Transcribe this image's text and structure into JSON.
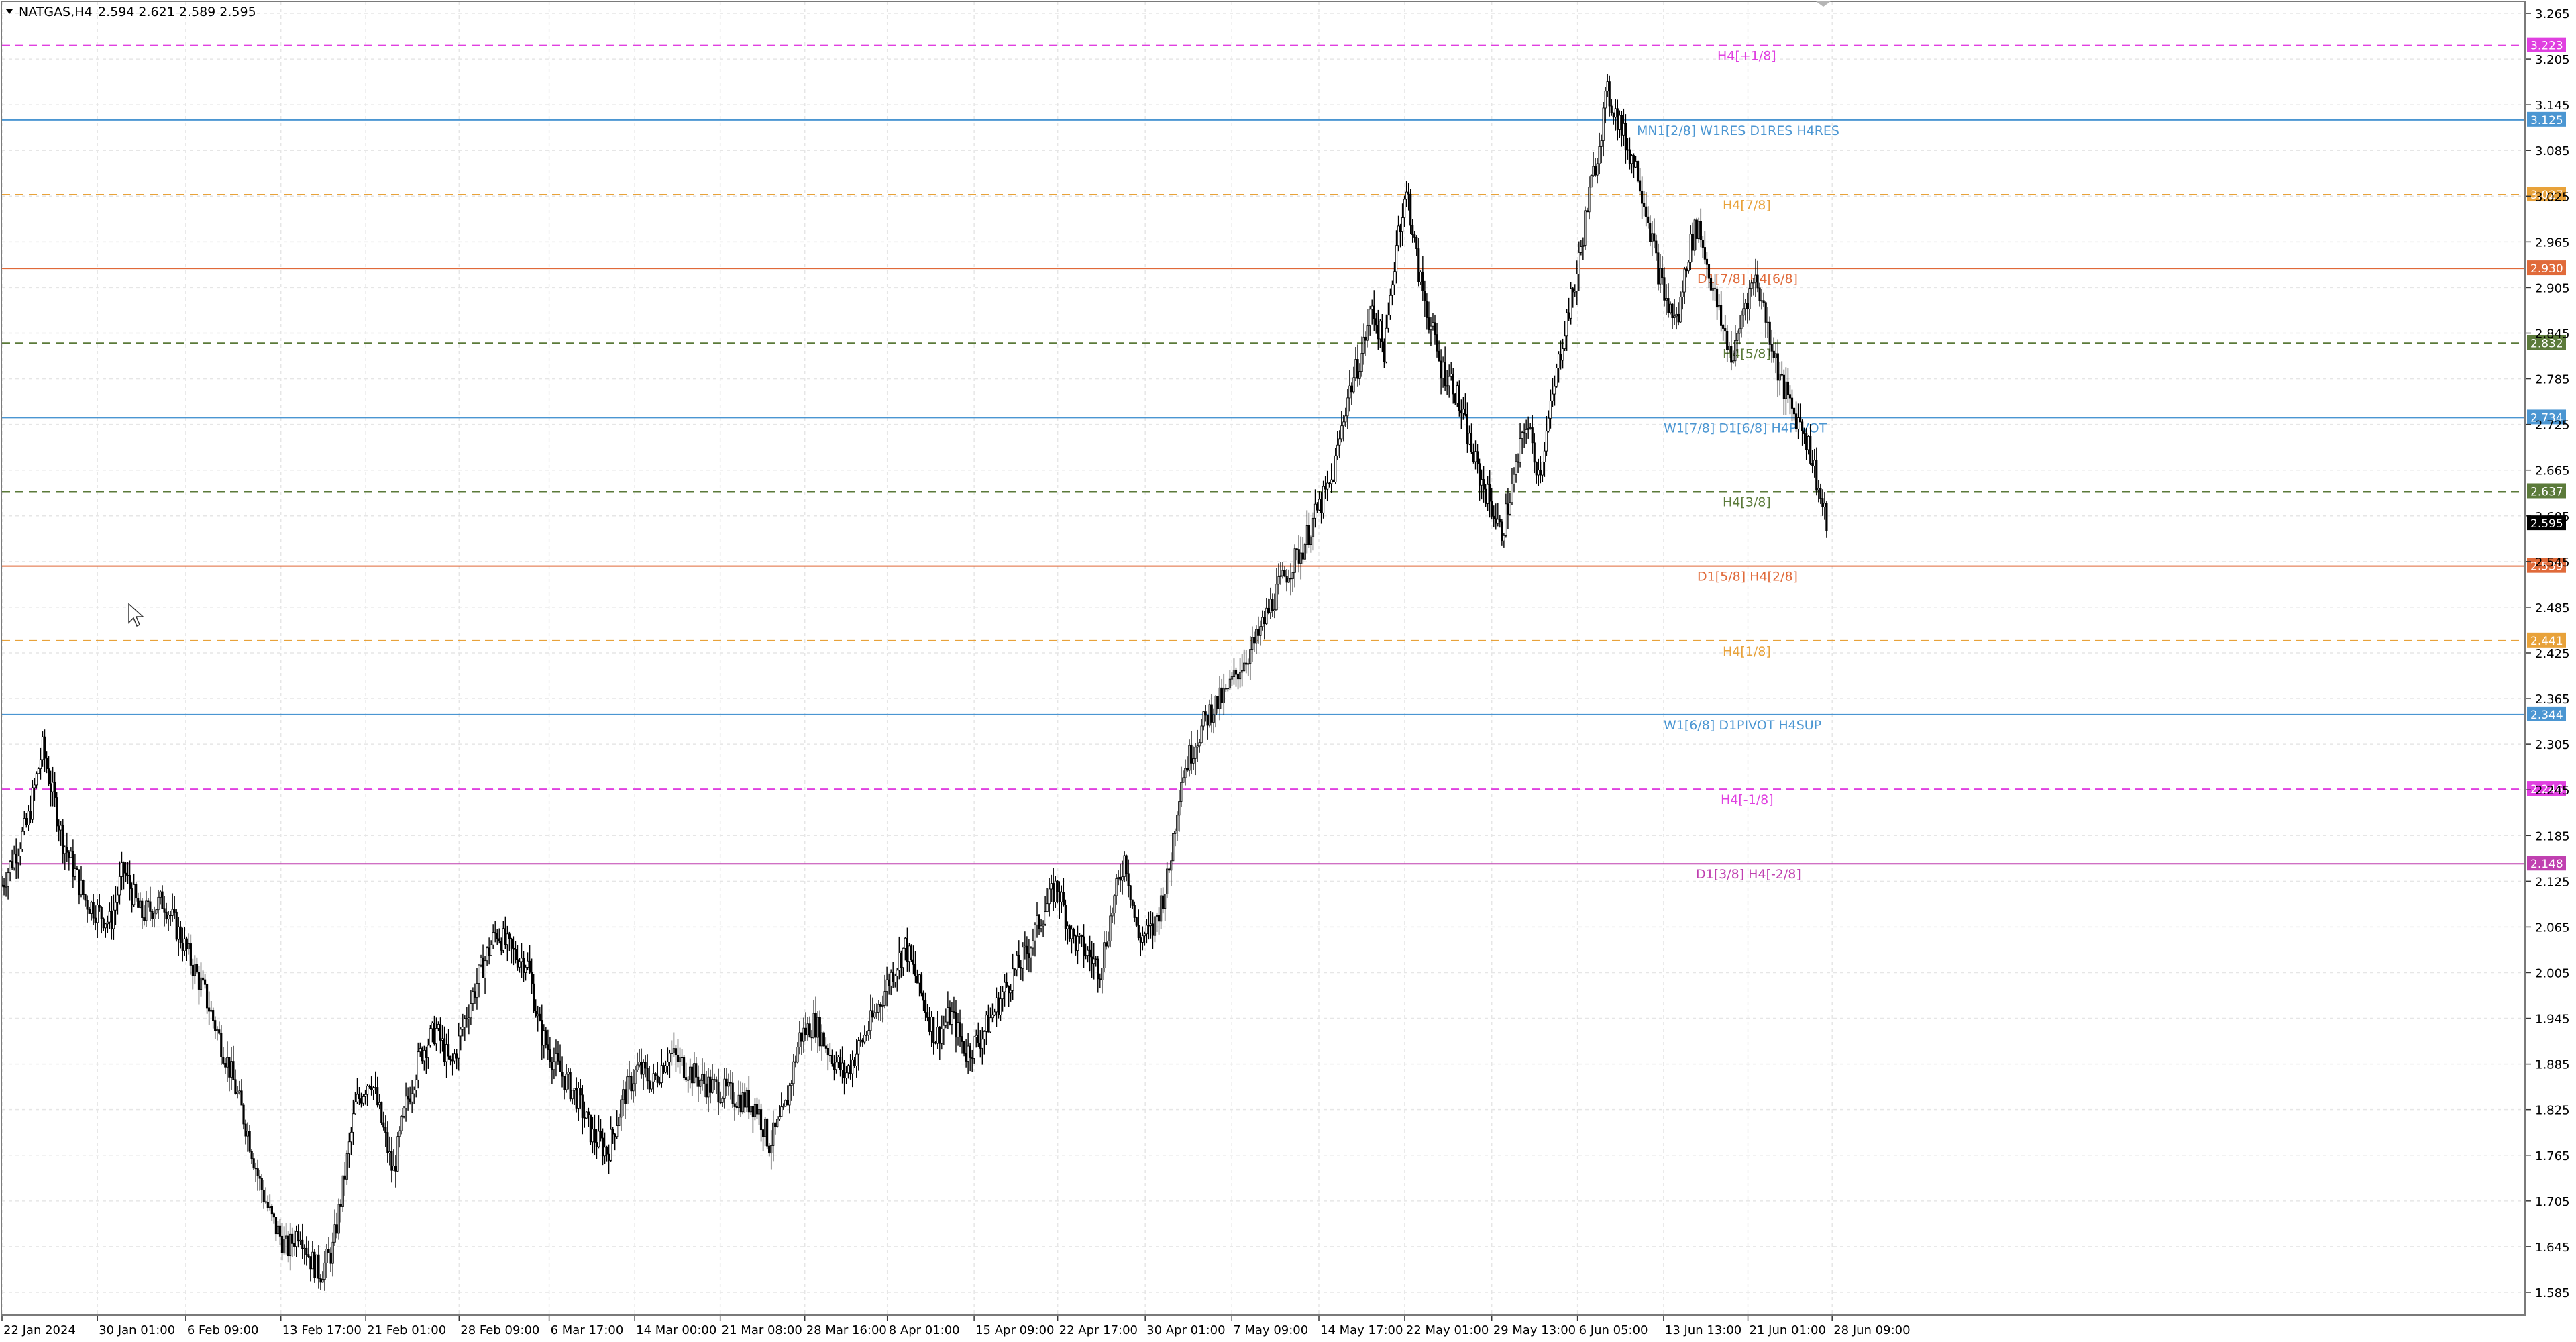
{
  "header": {
    "symbol": "NATGAS,H4",
    "ohlc": "2.594 2.621 2.589 2.595",
    "menu_icon": "triangle-down-icon"
  },
  "cursor_icon": "arrow-cursor-icon",
  "chart_data": {
    "type": "candlestick",
    "symbol": "NATGAS",
    "timeframe": "H4",
    "ylim": [
      1.555,
      3.28
    ],
    "y_ticks": [
      "3.265",
      "3.205",
      "3.145",
      "3.085",
      "3.025",
      "2.965",
      "2.905",
      "2.845",
      "2.785",
      "2.725",
      "2.665",
      "2.605",
      "2.545",
      "2.485",
      "2.425",
      "2.365",
      "2.305",
      "2.245",
      "2.185",
      "2.125",
      "2.065",
      "2.005",
      "1.945",
      "1.885",
      "1.825",
      "1.765",
      "1.705",
      "1.645",
      "1.585"
    ],
    "x_ticks": [
      "22 Jan 2024",
      "30 Jan 01:00",
      "6 Feb 09:00",
      "13 Feb 17:00",
      "21 Feb 01:00",
      "28 Feb 09:00",
      "6 Mar 17:00",
      "14 Mar 00:00",
      "21 Mar 08:00",
      "28 Mar 16:00",
      "8 Apr 01:00",
      "15 Apr 09:00",
      "22 Apr 17:00",
      "30 Apr 01:00",
      "7 May 09:00",
      "14 May 17:00",
      "22 May 01:00",
      "29 May 13:00",
      "6 Jun 05:00",
      "13 Jun 13:00",
      "21 Jun 01:00",
      "28 Jun 09:00"
    ],
    "x_tick_positions": [
      0.0,
      0.0378,
      0.0728,
      0.1105,
      0.1441,
      0.1811,
      0.2168,
      0.2507,
      0.2846,
      0.3181,
      0.3508,
      0.3852,
      0.4183,
      0.453,
      0.4873,
      0.5218,
      0.5558,
      0.5903,
      0.6243,
      0.6584,
      0.6918,
      0.7252
    ],
    "close_path": [
      [
        0.0,
        2.12
      ],
      [
        0.01,
        2.2
      ],
      [
        0.016,
        2.3
      ],
      [
        0.024,
        2.18
      ],
      [
        0.033,
        2.1
      ],
      [
        0.043,
        2.07
      ],
      [
        0.048,
        2.14
      ],
      [
        0.055,
        2.08
      ],
      [
        0.064,
        2.1
      ],
      [
        0.071,
        2.05
      ],
      [
        0.08,
        1.98
      ],
      [
        0.086,
        1.92
      ],
      [
        0.091,
        1.87
      ],
      [
        0.097,
        1.8
      ],
      [
        0.102,
        1.73
      ],
      [
        0.107,
        1.68
      ],
      [
        0.113,
        1.64
      ],
      [
        0.118,
        1.67
      ],
      [
        0.122,
        1.63
      ],
      [
        0.126,
        1.61
      ],
      [
        0.131,
        1.64
      ],
      [
        0.135,
        1.72
      ],
      [
        0.14,
        1.83
      ],
      [
        0.146,
        1.87
      ],
      [
        0.151,
        1.8
      ],
      [
        0.155,
        1.74
      ],
      [
        0.16,
        1.83
      ],
      [
        0.166,
        1.9
      ],
      [
        0.172,
        1.93
      ],
      [
        0.178,
        1.88
      ],
      [
        0.184,
        1.95
      ],
      [
        0.19,
        2.01
      ],
      [
        0.196,
        2.06
      ],
      [
        0.202,
        2.03
      ],
      [
        0.208,
        2.02
      ],
      [
        0.213,
        1.93
      ],
      [
        0.22,
        1.88
      ],
      [
        0.228,
        1.84
      ],
      [
        0.234,
        1.79
      ],
      [
        0.24,
        1.77
      ],
      [
        0.246,
        1.84
      ],
      [
        0.252,
        1.88
      ],
      [
        0.258,
        1.86
      ],
      [
        0.264,
        1.9
      ],
      [
        0.271,
        1.88
      ],
      [
        0.278,
        1.86
      ],
      [
        0.285,
        1.85
      ],
      [
        0.292,
        1.84
      ],
      [
        0.299,
        1.83
      ],
      [
        0.304,
        1.78
      ],
      [
        0.31,
        1.82
      ],
      [
        0.316,
        1.92
      ],
      [
        0.322,
        1.94
      ],
      [
        0.328,
        1.9
      ],
      [
        0.334,
        1.87
      ],
      [
        0.34,
        1.91
      ],
      [
        0.346,
        1.95
      ],
      [
        0.352,
        2.0
      ],
      [
        0.358,
        2.04
      ],
      [
        0.364,
        1.98
      ],
      [
        0.37,
        1.92
      ],
      [
        0.376,
        1.95
      ],
      [
        0.382,
        1.9
      ],
      [
        0.388,
        1.92
      ],
      [
        0.394,
        1.96
      ],
      [
        0.4,
        2.0
      ],
      [
        0.406,
        2.03
      ],
      [
        0.412,
        2.08
      ],
      [
        0.418,
        2.12
      ],
      [
        0.424,
        2.05
      ],
      [
        0.43,
        2.03
      ],
      [
        0.435,
        2.01
      ],
      [
        0.44,
        2.09
      ],
      [
        0.445,
        2.16
      ],
      [
        0.45,
        2.05
      ],
      [
        0.456,
        2.06
      ],
      [
        0.462,
        2.13
      ],
      [
        0.467,
        2.26
      ],
      [
        0.473,
        2.31
      ],
      [
        0.479,
        2.35
      ],
      [
        0.485,
        2.37
      ],
      [
        0.491,
        2.41
      ],
      [
        0.497,
        2.44
      ],
      [
        0.503,
        2.49
      ],
      [
        0.509,
        2.53
      ],
      [
        0.515,
        2.56
      ],
      [
        0.521,
        2.61
      ],
      [
        0.527,
        2.65
      ],
      [
        0.533,
        2.76
      ],
      [
        0.539,
        2.82
      ],
      [
        0.543,
        2.88
      ],
      [
        0.548,
        2.82
      ],
      [
        0.553,
        2.98
      ],
      [
        0.557,
        3.03
      ],
      [
        0.561,
        2.93
      ],
      [
        0.565,
        2.87
      ],
      [
        0.57,
        2.8
      ],
      [
        0.575,
        2.78
      ],
      [
        0.58,
        2.72
      ],
      [
        0.585,
        2.66
      ],
      [
        0.59,
        2.62
      ],
      [
        0.594,
        2.58
      ],
      [
        0.599,
        2.65
      ],
      [
        0.604,
        2.73
      ],
      [
        0.609,
        2.66
      ],
      [
        0.614,
        2.75
      ],
      [
        0.619,
        2.85
      ],
      [
        0.624,
        2.92
      ],
      [
        0.628,
        3.01
      ],
      [
        0.632,
        3.08
      ],
      [
        0.636,
        3.16
      ],
      [
        0.64,
        3.13
      ],
      [
        0.644,
        3.09
      ],
      [
        0.648,
        3.06
      ],
      [
        0.652,
        3.0
      ],
      [
        0.656,
        2.93
      ],
      [
        0.66,
        2.88
      ],
      [
        0.664,
        2.86
      ],
      [
        0.668,
        2.95
      ],
      [
        0.672,
        2.99
      ],
      [
        0.676,
        2.93
      ],
      [
        0.681,
        2.86
      ],
      [
        0.686,
        2.81
      ],
      [
        0.69,
        2.88
      ],
      [
        0.695,
        2.92
      ],
      [
        0.7,
        2.85
      ],
      [
        0.705,
        2.78
      ],
      [
        0.71,
        2.74
      ],
      [
        0.714,
        2.72
      ],
      [
        0.718,
        2.67
      ],
      [
        0.721,
        2.62
      ],
      [
        0.723,
        2.595
      ]
    ],
    "levels": [
      {
        "value": 3.223,
        "label": "H4[+1/8]",
        "price_label": "3.223",
        "color": "#e040e0",
        "dash": true
      },
      {
        "value": 3.125,
        "label": "MN1[2/8] W1RES D1RES H4RES",
        "price_label": "3.125",
        "color": "#4b96d2",
        "dash": false
      },
      {
        "value": 3.027,
        "label": "H4[7/8]",
        "price_label": "3.027",
        "color": "#e8a23a",
        "dash": true
      },
      {
        "value": 2.93,
        "label": "D1[7/8] H4[6/8]",
        "price_label": "2.930",
        "color": "#e06a3a",
        "dash": false
      },
      {
        "value": 2.832,
        "label": "H4[5/8]",
        "price_label": "2.832",
        "color": "#5b7a3a",
        "dash": true
      },
      {
        "value": 2.734,
        "label": "W1[7/8] D1[6/8] H4PIVOT",
        "price_label": "2.734",
        "color": "#4b96d2",
        "dash": false
      },
      {
        "value": 2.637,
        "label": "H4[3/8]",
        "price_label": "2.637",
        "color": "#5b7a3a",
        "dash": true
      },
      {
        "value": 2.539,
        "label": "D1[5/8] H4[2/8]",
        "price_label": "2.539",
        "color": "#e06a3a",
        "dash": false
      },
      {
        "value": 2.441,
        "label": "H4[1/8]",
        "price_label": "2.441",
        "color": "#e8a23a",
        "dash": true
      },
      {
        "value": 2.344,
        "label": "W1[6/8] D1PIVOT H4SUP",
        "price_label": "2.344",
        "color": "#4b96d2",
        "dash": false
      },
      {
        "value": 2.246,
        "label": "H4[-1/8]",
        "price_label": "2.246",
        "color": "#e040e0",
        "dash": true
      },
      {
        "value": 2.148,
        "label": "D1[3/8] H4[-2/8]",
        "price_label": "2.148",
        "color": "#c040b0",
        "dash": false
      }
    ],
    "current_price": {
      "value": 2.595,
      "price_label": "2.595",
      "color": "#000000"
    },
    "grid": true,
    "colors": {
      "candle": "#000000",
      "grid": "#e6e6e6",
      "frame": "#7a7a7a"
    }
  }
}
